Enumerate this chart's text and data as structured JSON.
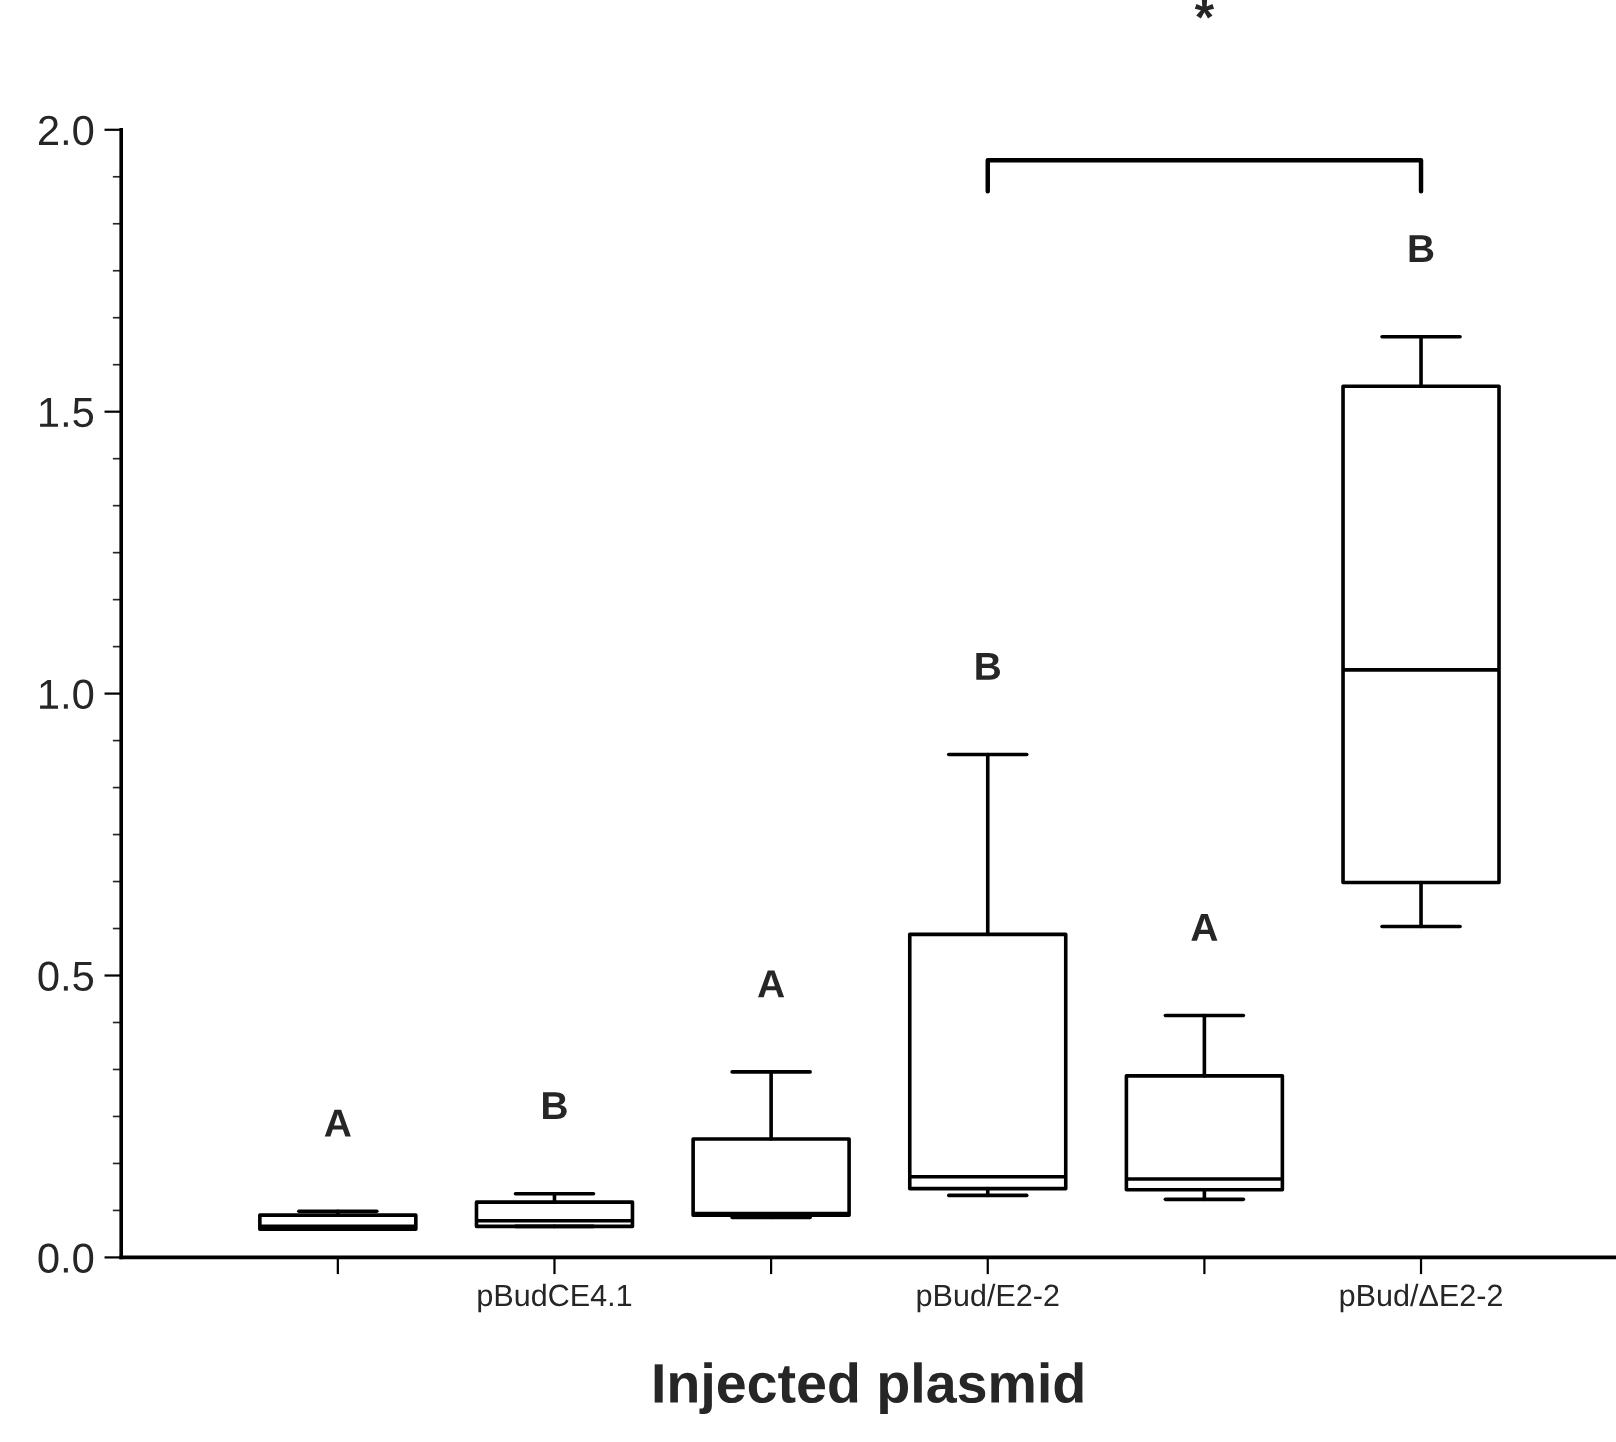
{
  "chart_data": {
    "type": "box",
    "xlabel": "Injected plasmid",
    "categories": [
      null,
      "pBudCE4.1",
      null,
      "pBud/E2-2",
      null,
      "pBud/ΔE2-2"
    ],
    "boxes": [
      {
        "low": 0.05,
        "q1": 0.05,
        "median": 0.055,
        "q3": 0.075,
        "high": 0.082
      },
      {
        "low": 0.055,
        "q1": 0.055,
        "median": 0.065,
        "q3": 0.098,
        "high": 0.113
      },
      {
        "low": 0.071,
        "q1": 0.075,
        "median": 0.078,
        "q3": 0.21,
        "high": 0.329
      },
      {
        "low": 0.11,
        "q1": 0.122,
        "median": 0.143,
        "q3": 0.573,
        "high": 0.892
      },
      {
        "low": 0.103,
        "q1": 0.12,
        "median": 0.139,
        "q3": 0.322,
        "high": 0.429
      },
      {
        "low": 0.587,
        "q1": 0.665,
        "median": 1.042,
        "q3": 1.545,
        "high": 1.633
      }
    ],
    "color": "#000000",
    "ylim": [
      0,
      2.0
    ],
    "yticks": [
      {
        "value": 0,
        "label": "0.0"
      },
      0.5,
      {
        "value": 1,
        "label": "1.0"
      },
      1.5,
      {
        "value": 2,
        "label": "2.0"
      }
    ],
    "grid": false,
    "annotations": [
      "A",
      "B",
      "A",
      "B",
      "A",
      "B",
      "*"
    ]
  }
}
